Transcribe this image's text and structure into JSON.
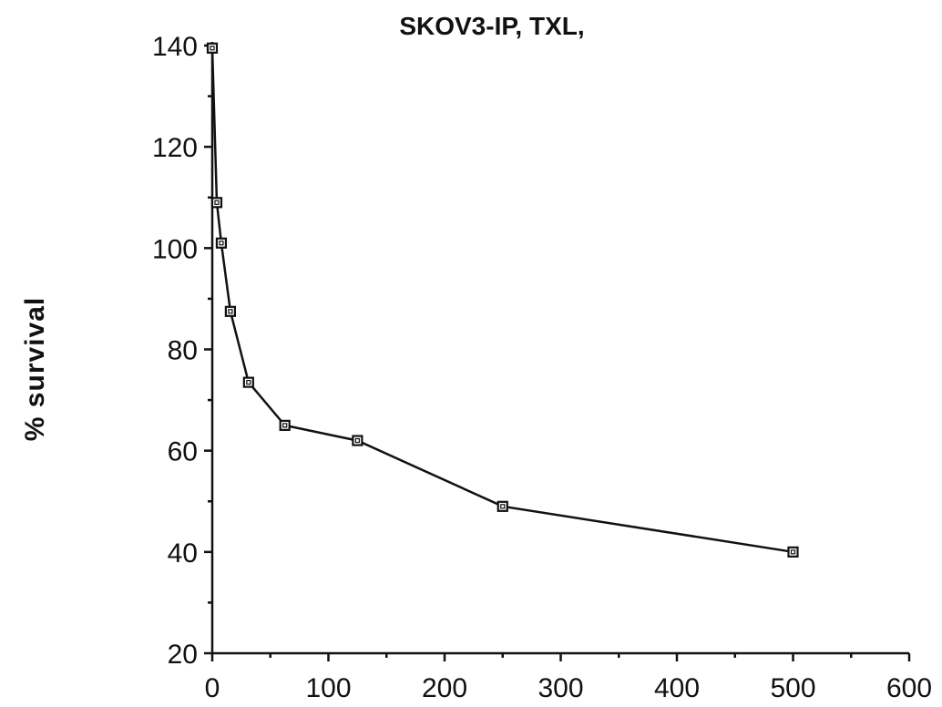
{
  "chart_data": {
    "type": "line",
    "title": "SKOV3-IP,  TXL,",
    "xlabel": "",
    "ylabel": "% survival",
    "xlim": [
      0,
      600
    ],
    "ylim": [
      20,
      140
    ],
    "xticks": [
      0,
      100,
      200,
      300,
      400,
      500,
      600
    ],
    "yticks": [
      20,
      40,
      60,
      80,
      100,
      120,
      140
    ],
    "grid": false,
    "legend": "none",
    "marker": "open-square",
    "colors": {
      "series": "#111111",
      "background": "#ffffff"
    },
    "series": [
      {
        "x": [
          0,
          3.9,
          7.8,
          15.6,
          31.25,
          62.5,
          125,
          250,
          500
        ],
        "y": [
          139.5,
          109,
          101,
          87.5,
          73.5,
          65,
          62,
          49,
          40
        ]
      }
    ]
  }
}
